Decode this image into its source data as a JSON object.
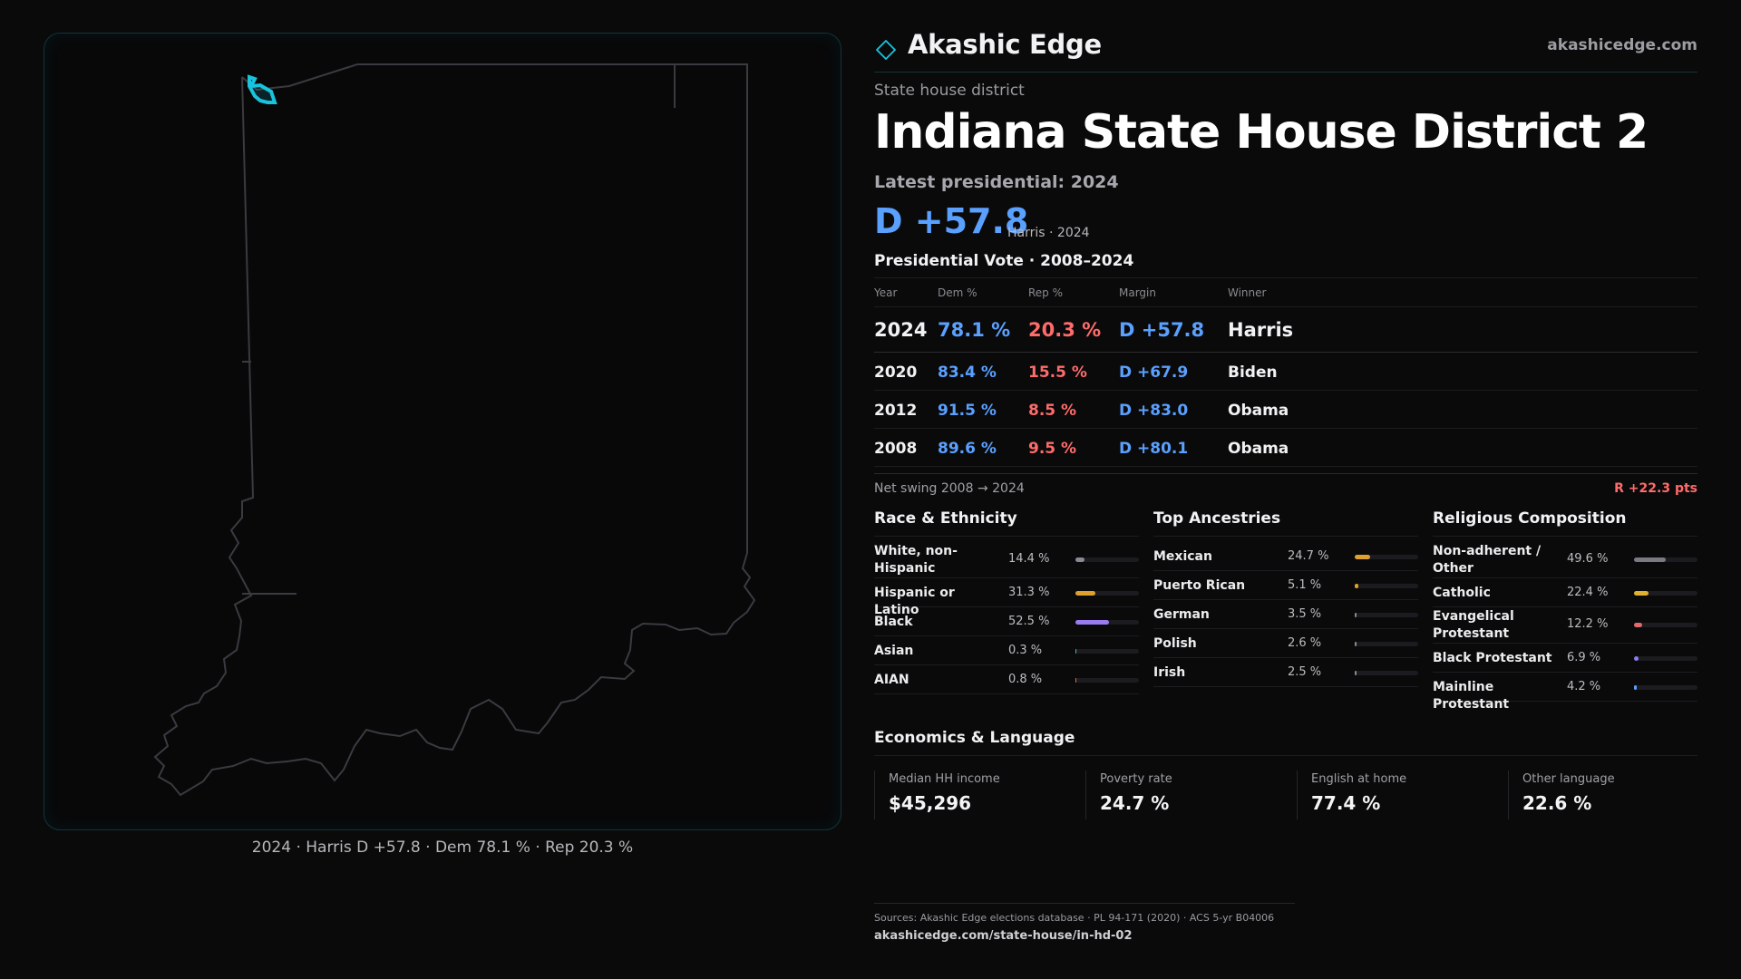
{
  "map": {
    "caption": "2024 · Harris D +57.8 · Dem 78.1 % · Rep 20.3 %"
  },
  "header": {
    "brand": "Akashic Edge",
    "site": "akashicedge.com",
    "accent": "#19c3dd"
  },
  "kicker": "State house district",
  "title": "Indiana State House District 2",
  "latest": {
    "label": "Latest presidential: 2024",
    "margin": "D +57.8",
    "sub": "Harris · 2024"
  },
  "vote_table": {
    "title": "Presidential Vote · 2008–2024",
    "columns": [
      "Year",
      "Dem %",
      "Rep %",
      "Margin",
      "Winner"
    ],
    "rows": [
      {
        "year": "2024",
        "dem": "78.1 %",
        "rep": "20.3 %",
        "margin": "D +57.8",
        "winner": "Harris"
      },
      {
        "year": "2020",
        "dem": "83.4 %",
        "rep": "15.5 %",
        "margin": "D +67.9",
        "winner": "Biden"
      },
      {
        "year": "2012",
        "dem": "91.5 %",
        "rep": "8.5 %",
        "margin": "D +83.0",
        "winner": "Obama"
      },
      {
        "year": "2008",
        "dem": "89.6 %",
        "rep": "9.5 %",
        "margin": "D +80.1",
        "winner": "Obama"
      }
    ]
  },
  "swing": {
    "label": "Net swing 2008 → 2024",
    "value": "R +22.3 pts"
  },
  "race": {
    "title": "Race & Ethnicity",
    "items": [
      {
        "label": "White, non-Hispanic",
        "value": "14.4 %",
        "pct": 14.4,
        "color": "#8a8a92"
      },
      {
        "label": "Hispanic or Latino",
        "value": "31.3 %",
        "pct": 31.3,
        "color": "#e0a030"
      },
      {
        "label": "Black",
        "value": "52.5 %",
        "pct": 52.5,
        "color": "#9b7cf0"
      },
      {
        "label": "Asian",
        "value": "0.3 %",
        "pct": 0.3,
        "color": "#3cc0a0"
      },
      {
        "label": "AIAN",
        "value": "0.8 %",
        "pct": 0.8,
        "color": "#e07040"
      }
    ]
  },
  "ancestry": {
    "title": "Top Ancestries",
    "items": [
      {
        "label": "Mexican",
        "value": "24.7 %",
        "pct": 24.7,
        "color": "#e0a030"
      },
      {
        "label": "Puerto Rican",
        "value": "5.1 %",
        "pct": 5.1,
        "color": "#e0a030"
      },
      {
        "label": "German",
        "value": "3.5 %",
        "pct": 3.5,
        "color": "#8a8a92"
      },
      {
        "label": "Polish",
        "value": "2.6 %",
        "pct": 2.6,
        "color": "#8a8a92"
      },
      {
        "label": "Irish",
        "value": "2.5 %",
        "pct": 2.5,
        "color": "#8a8a92"
      }
    ]
  },
  "religion": {
    "title": "Religious Composition",
    "items": [
      {
        "label": "Non-adherent / Other",
        "value": "49.6 %",
        "pct": 49.6,
        "color": "#7a7a82"
      },
      {
        "label": "Catholic",
        "value": "22.4 %",
        "pct": 22.4,
        "color": "#e0b030"
      },
      {
        "label": "Evangelical Protestant",
        "value": "12.2 %",
        "pct": 12.2,
        "color": "#e06a6a"
      },
      {
        "label": "Black Protestant",
        "value": "6.9 %",
        "pct": 6.9,
        "color": "#8a7cf0"
      },
      {
        "label": "Mainline Protestant",
        "value": "4.2 %",
        "pct": 4.2,
        "color": "#5aa0ff"
      }
    ]
  },
  "economics": {
    "title": "Economics & Language",
    "items": [
      {
        "label": "Median HH income",
        "value": "$45,296"
      },
      {
        "label": "Poverty rate",
        "value": "24.7 %"
      },
      {
        "label": "English at home",
        "value": "77.4 %"
      },
      {
        "label": "Other language",
        "value": "22.6 %"
      }
    ]
  },
  "footer": {
    "sources": "Sources: Akashic Edge elections database · PL 94-171 (2020) · ACS 5-yr B04006",
    "url": "akashicedge.com/state-house/in-hd-02"
  },
  "colors": {
    "dem": "#5aa0ff",
    "rep": "#ff6b6b",
    "district_outline": "#19c3dd",
    "state_outline": "#3a3a40"
  }
}
